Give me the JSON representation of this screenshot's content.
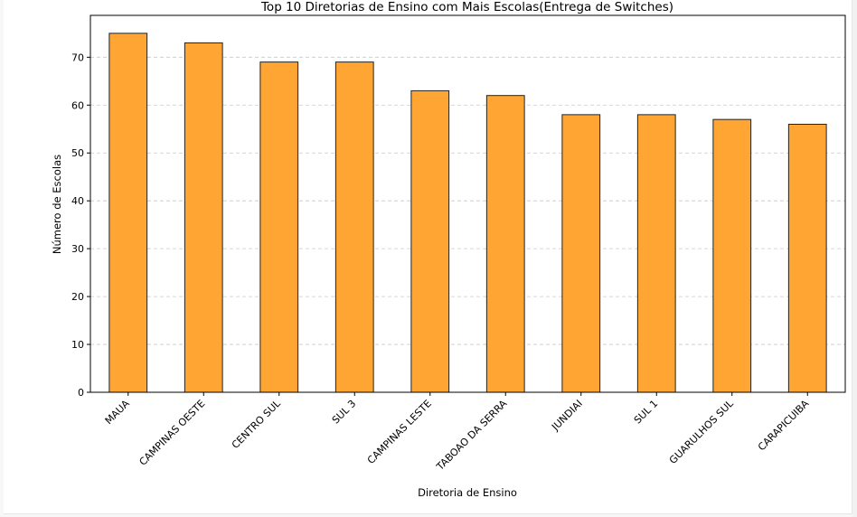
{
  "chart_data": {
    "type": "bar",
    "title": "Top 10 Diretorias de Ensino com Mais Escolas(Entrega de Switches)",
    "xlabel": "Diretoria de Ensino",
    "ylabel": "Número de Escolas",
    "categories": [
      "MAUA",
      "CAMPINAS OESTE",
      "CENTRO SUL",
      "SUL 3",
      "CAMPINAS LESTE",
      "TABOAO DA SERRA",
      "JUNDIAI",
      "SUL 1",
      "GUARULHOS SUL",
      "CARAPICUIBA"
    ],
    "values": [
      75,
      73,
      69,
      69,
      63,
      62,
      58,
      58,
      57,
      56
    ],
    "ylim": [
      0,
      78.75
    ],
    "yticks": [
      0,
      10,
      20,
      30,
      40,
      50,
      60,
      70
    ],
    "grid": "y-dashed",
    "bar_color": "#ffa534",
    "edge_color": "#222222"
  }
}
